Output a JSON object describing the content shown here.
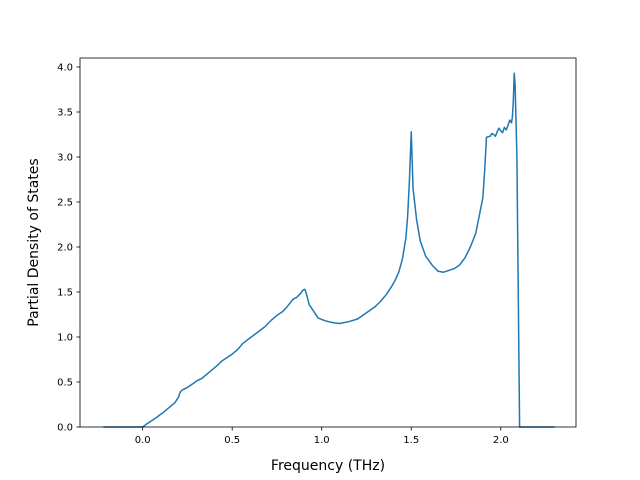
{
  "chart_data": {
    "type": "line",
    "title": "",
    "xlabel": "Frequency (THz)",
    "ylabel": "Partial Density of States",
    "xlim": [
      -0.35,
      2.42
    ],
    "ylim": [
      0.0,
      4.1
    ],
    "xticks": [
      0.0,
      0.5,
      1.0,
      1.5,
      2.0
    ],
    "xtick_labels": [
      "0.0",
      "0.5",
      "1.0",
      "1.5",
      "2.0"
    ],
    "yticks": [
      0.0,
      0.5,
      1.0,
      1.5,
      2.0,
      2.5,
      3.0,
      3.5,
      4.0
    ],
    "ytick_labels": [
      "0.0",
      "0.5",
      "1.0",
      "1.5",
      "2.0",
      "2.5",
      "3.0",
      "3.5",
      "4.0"
    ],
    "grid": false,
    "line_color": "#1f77b4",
    "series": [
      {
        "x": [
          -0.22,
          -0.15,
          -0.05,
          0.0,
          0.02,
          0.05,
          0.08,
          0.1,
          0.12,
          0.15,
          0.18,
          0.2,
          0.21,
          0.22,
          0.25,
          0.28,
          0.3,
          0.33,
          0.36,
          0.39,
          0.42,
          0.44,
          0.47,
          0.5,
          0.53,
          0.56,
          0.6,
          0.64,
          0.68,
          0.72,
          0.75,
          0.78,
          0.8,
          0.82,
          0.84,
          0.86,
          0.88,
          0.895,
          0.905,
          0.91,
          0.93,
          0.96,
          0.98,
          1.02,
          1.06,
          1.1,
          1.15,
          1.2,
          1.25,
          1.3,
          1.33,
          1.36,
          1.39,
          1.41,
          1.43,
          1.45,
          1.47,
          1.48,
          1.49,
          1.5,
          1.51,
          1.53,
          1.55,
          1.58,
          1.62,
          1.65,
          1.68,
          1.71,
          1.74,
          1.77,
          1.8,
          1.83,
          1.86,
          1.88,
          1.9,
          1.91,
          1.92,
          1.94,
          1.95,
          1.96,
          1.97,
          1.98,
          1.99,
          2.0,
          2.01,
          2.02,
          2.03,
          2.04,
          2.05,
          2.06,
          2.065,
          2.07,
          2.075,
          2.08,
          2.09,
          2.1,
          2.105,
          2.11,
          2.15,
          2.2,
          2.3
        ],
        "y": [
          0.0,
          0.0,
          0.0,
          0.0,
          0.03,
          0.07,
          0.11,
          0.14,
          0.17,
          0.22,
          0.27,
          0.33,
          0.39,
          0.41,
          0.44,
          0.48,
          0.51,
          0.54,
          0.59,
          0.64,
          0.69,
          0.73,
          0.77,
          0.81,
          0.86,
          0.93,
          0.99,
          1.05,
          1.11,
          1.19,
          1.24,
          1.28,
          1.32,
          1.37,
          1.42,
          1.44,
          1.48,
          1.52,
          1.53,
          1.51,
          1.36,
          1.27,
          1.21,
          1.18,
          1.16,
          1.15,
          1.17,
          1.2,
          1.27,
          1.34,
          1.4,
          1.47,
          1.56,
          1.63,
          1.72,
          1.86,
          2.1,
          2.35,
          2.75,
          3.28,
          2.65,
          2.3,
          2.07,
          1.9,
          1.79,
          1.73,
          1.72,
          1.74,
          1.76,
          1.8,
          1.88,
          2.0,
          2.15,
          2.35,
          2.55,
          2.85,
          3.22,
          3.23,
          3.26,
          3.25,
          3.23,
          3.28,
          3.32,
          3.29,
          3.27,
          3.33,
          3.3,
          3.35,
          3.41,
          3.38,
          3.45,
          3.62,
          3.93,
          3.8,
          3.0,
          1.0,
          0.0,
          0.0,
          0.0,
          0.0,
          0.0
        ]
      }
    ]
  }
}
